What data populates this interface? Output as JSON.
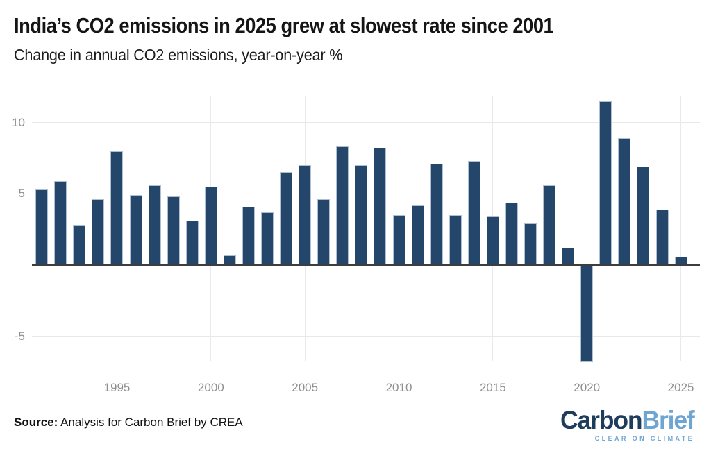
{
  "header": {
    "title": "India’s CO2 emissions in 2025 grew at slowest rate since 2001",
    "subtitle": "Change in annual CO2 emissions, year-on-year %"
  },
  "chart_data": {
    "type": "bar",
    "title": "India’s CO2 emissions in 2025 grew at slowest rate since 2001",
    "subtitle": "Change in annual CO2 emissions, year-on-year %",
    "unit": "%",
    "x": [
      1991,
      1992,
      1993,
      1994,
      1995,
      1996,
      1997,
      1998,
      1999,
      2000,
      2001,
      2002,
      2003,
      2004,
      2005,
      2006,
      2007,
      2008,
      2009,
      2010,
      2011,
      2012,
      2013,
      2014,
      2015,
      2016,
      2017,
      2018,
      2019,
      2020,
      2021,
      2022,
      2023,
      2024,
      2025
    ],
    "values": [
      5.3,
      5.9,
      2.8,
      4.6,
      8.0,
      4.9,
      5.6,
      4.8,
      3.1,
      5.5,
      0.7,
      4.1,
      3.7,
      6.5,
      7.0,
      4.6,
      8.3,
      7.0,
      8.2,
      3.5,
      4.2,
      7.1,
      3.5,
      7.3,
      3.4,
      4.4,
      2.9,
      5.6,
      1.2,
      -6.8,
      11.5,
      8.9,
      6.9,
      3.9,
      0.6
    ],
    "y_ticks": [
      10,
      5,
      -5
    ],
    "x_ticks": [
      1995,
      2000,
      2005,
      2010,
      2015,
      2020,
      2025
    ],
    "ylim": [
      -6.8,
      11.9
    ],
    "grid": true,
    "legend": "none",
    "bar_color": "#24466b",
    "gridline_color": "#e8e8e8",
    "axis_line_color": "#3d3d3d",
    "tick_label_color": "#8f8f8f"
  },
  "footer": {
    "source_label": "Source:",
    "source_text": " Analysis for Carbon Brief by CREA"
  },
  "logo": {
    "part1": "Carbon",
    "part2": "Brief",
    "tagline": "CLEAR ON CLIMATE",
    "color_dark": "#1e3c5c",
    "color_light": "#6fa5d3"
  }
}
